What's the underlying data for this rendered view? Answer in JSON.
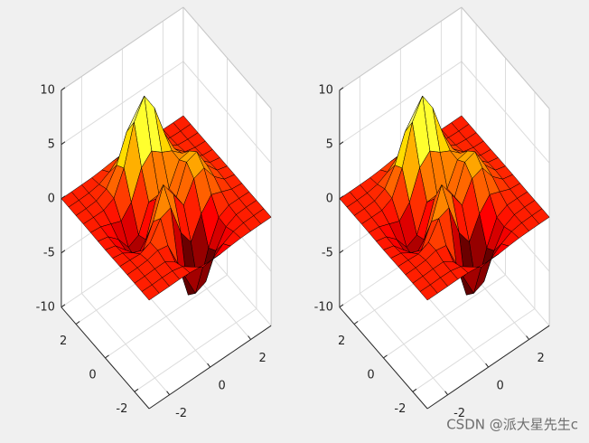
{
  "chart_data": [
    {
      "type": "surface",
      "colormap": "hot",
      "edge_color": "#000000",
      "grid": true,
      "x": [
        -3,
        -2.5,
        -2,
        -1.5,
        -1,
        -0.5,
        0,
        0.5,
        1,
        1.5,
        2,
        2.5,
        3
      ],
      "y": [
        -3,
        -2.5,
        -2,
        -1.5,
        -1,
        -0.5,
        0,
        0.5,
        1,
        1.5,
        2,
        2.5,
        3
      ],
      "z": [
        [
          0,
          0,
          0,
          0.01,
          -0.03,
          -0.14,
          -0.24,
          -0.22,
          -0.11,
          -0.03,
          -0.01,
          0,
          0
        ],
        [
          0,
          0,
          0.02,
          0,
          -0.23,
          -0.91,
          -1.57,
          -1.41,
          -0.69,
          -0.18,
          -0.03,
          0,
          0
        ],
        [
          0,
          0.01,
          0.05,
          0.05,
          -0.59,
          -2.63,
          -4.75,
          -4.34,
          -2.1,
          -0.53,
          -0.06,
          0,
          0
        ],
        [
          0,
          0.01,
          0.08,
          0.33,
          0.15,
          -2.19,
          -5.68,
          -5.76,
          -2.63,
          -0.44,
          0.04,
          0.03,
          0
        ],
        [
          -0.01,
          -0.06,
          -0.13,
          0.3,
          1.86,
          2.22,
          -0.72,
          -2.22,
          -0.27,
          0.88,
          0.5,
          0.11,
          0.01
        ],
        [
          -0.03,
          -0.2,
          -0.8,
          -1.21,
          0.8,
          3.55,
          2,
          0.39,
          2.2,
          2.56,
          1.12,
          0.24,
          0.03
        ],
        [
          -0.04,
          -0.3,
          -1.33,
          -2.77,
          -1.65,
          1.48,
          0.98,
          0.38,
          2.94,
          3.27,
          1.41,
          0.3,
          0.03
        ],
        [
          -0.03,
          -0.25,
          -1.12,
          -2.49,
          -2,
          0.39,
          0.46,
          0.37,
          2.38,
          2.56,
          1.09,
          0.23,
          0.03
        ],
        [
          -0.01,
          -0.11,
          -0.48,
          -0.86,
          0.23,
          2.79,
          3.69,
          2.94,
          2.43,
          1.58,
          0.58,
          0.11,
          0.01
        ],
        [
          0,
          -0.02,
          -0.01,
          0.47,
          2.61,
          6.2,
          7.99,
          6.25,
          3.25,
          1.19,
          0.29,
          0.05,
          0
        ],
        [
          0,
          0.01,
          0.08,
          0.55,
          2.09,
          4.55,
          5.85,
          4.56,
          2.21,
          0.68,
          0.13,
          0.02,
          0
        ],
        [
          0,
          0,
          0.03,
          0.19,
          0.69,
          1.47,
          1.88,
          1.47,
          0.7,
          0.21,
          0.04,
          0,
          0
        ],
        [
          0,
          0,
          0.01,
          0.03,
          0.11,
          0.23,
          0.3,
          0.23,
          0.11,
          0.03,
          0.01,
          0,
          0
        ]
      ],
      "xlim": [
        -3,
        3
      ],
      "ylim": [
        -3,
        3
      ],
      "zlim": [
        -10,
        10
      ],
      "xticks": [
        -2,
        0,
        2
      ],
      "yticks": [
        -2,
        0,
        2
      ],
      "zticks": [
        -10,
        -5,
        0,
        5,
        10
      ]
    },
    {
      "type": "surface",
      "colormap": "hot",
      "edge_color": "#000000",
      "grid": true,
      "x": [
        -3,
        -2.5,
        -2,
        -1.5,
        -1,
        -0.5,
        0,
        0.5,
        1,
        1.5,
        2,
        2.5,
        3
      ],
      "y": [
        -3,
        -2.5,
        -2,
        -1.5,
        -1,
        -0.5,
        0,
        0.5,
        1,
        1.5,
        2,
        2.5,
        3
      ],
      "z": [
        [
          0,
          0,
          0,
          0.01,
          -0.03,
          -0.14,
          -0.24,
          -0.22,
          -0.11,
          -0.03,
          -0.01,
          0,
          0
        ],
        [
          0,
          0,
          0.02,
          0,
          -0.23,
          -0.91,
          -1.57,
          -1.41,
          -0.69,
          -0.18,
          -0.03,
          0,
          0
        ],
        [
          0,
          0.01,
          0.05,
          0.05,
          -0.59,
          -2.63,
          -4.75,
          -4.34,
          -2.1,
          -0.53,
          -0.06,
          0,
          0
        ],
        [
          0,
          0.01,
          0.08,
          0.33,
          0.15,
          -2.19,
          -5.68,
          -5.76,
          -2.63,
          -0.44,
          0.04,
          0.03,
          0
        ],
        [
          -0.01,
          -0.06,
          -0.13,
          0.3,
          1.86,
          2.22,
          -0.72,
          -2.22,
          -0.27,
          0.88,
          0.5,
          0.11,
          0.01
        ],
        [
          -0.03,
          -0.2,
          -0.8,
          -1.21,
          0.8,
          3.55,
          2,
          0.39,
          2.2,
          2.56,
          1.12,
          0.24,
          0.03
        ],
        [
          -0.04,
          -0.3,
          -1.33,
          -2.77,
          -1.65,
          1.48,
          0.98,
          0.38,
          2.94,
          3.27,
          1.41,
          0.3,
          0.03
        ],
        [
          -0.03,
          -0.25,
          -1.12,
          -2.49,
          -2,
          0.39,
          0.46,
          0.37,
          2.38,
          2.56,
          1.09,
          0.23,
          0.03
        ],
        [
          -0.01,
          -0.11,
          -0.48,
          -0.86,
          0.23,
          2.79,
          3.69,
          2.94,
          2.43,
          1.58,
          0.58,
          0.11,
          0.01
        ],
        [
          0,
          -0.02,
          -0.01,
          0.47,
          2.61,
          6.2,
          7.99,
          6.25,
          3.25,
          1.19,
          0.29,
          0.05,
          0
        ],
        [
          0,
          0.01,
          0.08,
          0.55,
          2.09,
          4.55,
          5.85,
          4.56,
          2.21,
          0.68,
          0.13,
          0.02,
          0
        ],
        [
          0,
          0,
          0.03,
          0.19,
          0.69,
          1.47,
          1.88,
          1.47,
          0.7,
          0.21,
          0.04,
          0,
          0
        ],
        [
          0,
          0,
          0.01,
          0.03,
          0.11,
          0.23,
          0.3,
          0.23,
          0.11,
          0.03,
          0.01,
          0,
          0
        ]
      ],
      "xlim": [
        -3,
        3
      ],
      "ylim": [
        -3,
        3
      ],
      "zlim": [
        -10,
        10
      ],
      "xticks": [
        -2,
        0,
        2
      ],
      "yticks": [
        -2,
        0,
        2
      ],
      "zticks": [
        -10,
        -5,
        0,
        5,
        10
      ]
    }
  ],
  "watermark": "CSDN @派大星先生c"
}
